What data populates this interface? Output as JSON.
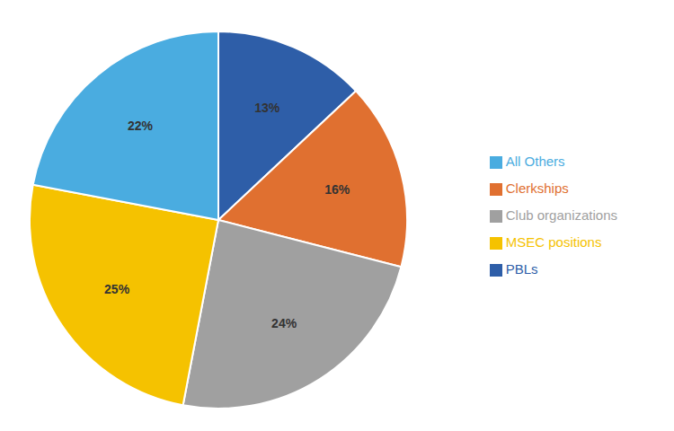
{
  "chart_data": {
    "type": "pie",
    "categories": [
      "PBLs",
      "Clerkships",
      "Club organizations",
      "MSEC positions",
      "All Others"
    ],
    "values": [
      13,
      16,
      24,
      25,
      22
    ],
    "value_labels": [
      "13%",
      "16%",
      "24%",
      "25%",
      "22%"
    ],
    "colors": [
      "#2E5EA8",
      "#E07030",
      "#A0A0A0",
      "#F5C200",
      "#4AACE0"
    ],
    "data_labels": true,
    "legend": "right"
  }
}
